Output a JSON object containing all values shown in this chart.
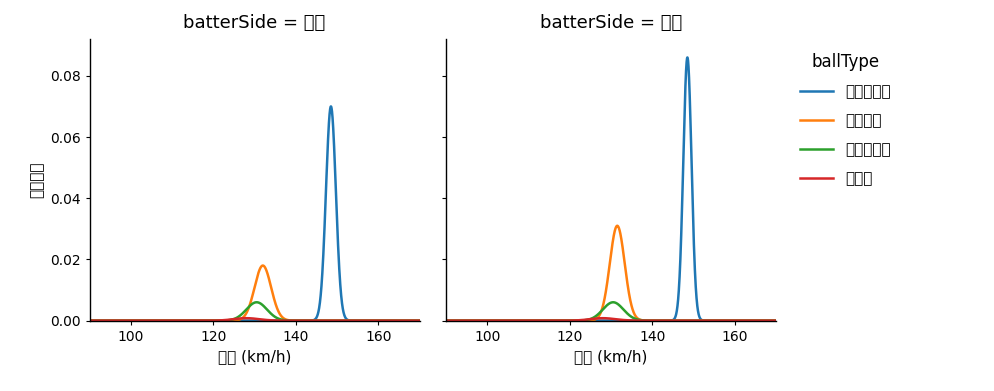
{
  "panels": [
    {
      "title": "batterSide = 右打",
      "ball_types": [
        {
          "name": "ストレート",
          "mean": 148.5,
          "std": 1.2,
          "peak": 0.07,
          "color": "#1f77b4"
        },
        {
          "name": "フォーク",
          "mean": 132.0,
          "std": 2.0,
          "peak": 0.018,
          "color": "#ff7f0e"
        },
        {
          "name": "スライダー",
          "mean": 130.5,
          "std": 2.5,
          "peak": 0.006,
          "color": "#2ca02c"
        },
        {
          "name": "カーブ",
          "mean": 128.0,
          "std": 3.0,
          "peak": 0.0008,
          "color": "#d62728"
        }
      ]
    },
    {
      "title": "batterSide = 左打",
      "ball_types": [
        {
          "name": "ストレート",
          "mean": 148.5,
          "std": 1.0,
          "peak": 0.086,
          "color": "#1f77b4"
        },
        {
          "name": "フォーク",
          "mean": 131.5,
          "std": 1.8,
          "peak": 0.031,
          "color": "#ff7f0e"
        },
        {
          "name": "スライダー",
          "mean": 130.5,
          "std": 2.5,
          "peak": 0.006,
          "color": "#2ca02c"
        },
        {
          "name": "カーブ",
          "mean": 128.0,
          "std": 3.0,
          "peak": 0.0008,
          "color": "#d62728"
        }
      ]
    }
  ],
  "xlim": [
    90,
    170
  ],
  "ylim": [
    0,
    0.092
  ],
  "xticks": [
    100,
    120,
    140,
    160
  ],
  "yticks": [
    0.0,
    0.02,
    0.04,
    0.06,
    0.08
  ],
  "xlabel": "球速 (km/h)",
  "ylabel": "確率密度",
  "legend_title": "ballType",
  "legend_labels": [
    "ストレート",
    "フォーク",
    "スライダー",
    "カーブ"
  ],
  "legend_colors": [
    "#1f77b4",
    "#ff7f0e",
    "#2ca02c",
    "#d62728"
  ],
  "background_color": "#ffffff",
  "linewidth": 1.8,
  "title_fontsize": 13,
  "label_fontsize": 11,
  "legend_fontsize": 11,
  "legend_title_fontsize": 12
}
